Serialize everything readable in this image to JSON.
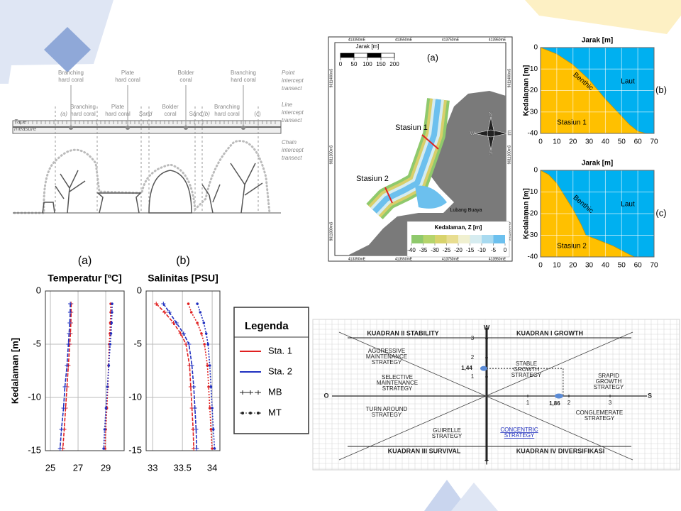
{
  "transect": {
    "point_labels": [
      [
        "Branching",
        "hard coral"
      ],
      [
        "Plate",
        "hard coral"
      ],
      [
        "Bolder",
        "coral"
      ],
      [
        "Branching",
        "hard coral"
      ]
    ],
    "point_title": [
      "Point",
      "intercept",
      "transect"
    ],
    "line_labels": [
      [
        "(a)"
      ],
      [
        "Branching",
        "hard coral"
      ],
      [
        "Plate",
        "hard coral"
      ],
      [
        "Sand"
      ],
      [
        "Bolder",
        "coral"
      ],
      [
        "Sand"
      ],
      [
        "(b)"
      ],
      [
        "Branching",
        "hard coral"
      ],
      [
        "(c)"
      ]
    ],
    "line_title": [
      "Line",
      "intercept",
      "transect"
    ],
    "tape_title": [
      "Tape",
      "measure"
    ],
    "chain_title": [
      "Chain",
      "intercept",
      "transect"
    ]
  },
  "map": {
    "panel": "(a)",
    "scale_title": "Jarak [m]",
    "scale_ticks": [
      0,
      50,
      100,
      150,
      200
    ],
    "eastings": [
      "413350mE",
      "413550mE",
      "413750mE",
      "413950mE"
    ],
    "northings": [
      "9611400mS",
      "9611200mS",
      "9611000mS"
    ],
    "stations": [
      "Stasiun 1",
      "Stasiun 2"
    ],
    "place": "Lubang Buaya",
    "colorbar_title": "Kedalaman, Z [m]",
    "colorbar_ticks": [
      -40,
      -35,
      -30,
      -25,
      -20,
      -15,
      -10,
      -5,
      0
    ],
    "compass": [
      "N",
      "E",
      "S",
      "W"
    ]
  },
  "legend": {
    "title": "Legenda",
    "items": [
      {
        "name": "Sta. 1",
        "color": "#e02020"
      },
      {
        "name": "Sta. 2",
        "color": "#2030c0"
      },
      {
        "name": "MB",
        "marker": "plus"
      },
      {
        "name": "MT",
        "marker": "dot"
      }
    ]
  },
  "chart_data": [
    {
      "type": "line",
      "panel": "(a)",
      "title": "Temperatur [ºC]",
      "ylabel": "Kedalaman [m]",
      "depths": [
        -1.2,
        -2,
        -3,
        -4,
        -5,
        -7,
        -9,
        -11,
        -13,
        -14.8
      ],
      "xlim": [
        24.64,
        30.33
      ],
      "xticks": [
        25,
        27,
        29
      ],
      "ylim": [
        -15,
        0
      ],
      "yticks": [
        0,
        -5,
        -10,
        -15
      ],
      "series": [
        {
          "color": "#e02020",
          "marker": "plus",
          "values": [
            26.5,
            26.5,
            26.48,
            26.45,
            26.4,
            26.3,
            26.2,
            26.1,
            26.0,
            25.9
          ]
        },
        {
          "color": "#2030c0",
          "marker": "plus",
          "values": [
            26.44,
            26.43,
            26.4,
            26.35,
            26.3,
            26.2,
            26.05,
            25.95,
            25.8,
            25.7
          ]
        },
        {
          "color": "#e02020",
          "marker": "dot",
          "values": [
            29.36,
            29.36,
            29.33,
            29.3,
            29.25,
            29.2,
            29.15,
            29.08,
            29.0,
            28.95
          ]
        },
        {
          "color": "#2030c0",
          "marker": "dot",
          "values": [
            29.46,
            29.45,
            29.42,
            29.38,
            29.32,
            29.22,
            29.12,
            29.02,
            28.92,
            28.85
          ]
        }
      ]
    },
    {
      "type": "line",
      "panel": "(b)",
      "title": "Salinitas [PSU]",
      "depths": [
        -1.2,
        -2,
        -3,
        -4,
        -5,
        -7,
        -9,
        -11,
        -13,
        -14.8
      ],
      "xlim": [
        32.89,
        34.13
      ],
      "xticks": [
        33,
        33.5,
        34
      ],
      "ylim": [
        -15,
        0
      ],
      "yticks": [
        0,
        -5,
        -10,
        -15
      ],
      "series": [
        {
          "color": "#e02020",
          "marker": "plus",
          "values": [
            33.06,
            33.2,
            33.35,
            33.47,
            33.56,
            33.62,
            33.64,
            33.66,
            33.68,
            33.69
          ]
        },
        {
          "color": "#2030c0",
          "marker": "plus",
          "values": [
            33.18,
            33.28,
            33.4,
            33.52,
            33.61,
            33.66,
            33.69,
            33.71,
            33.73,
            33.74
          ]
        },
        {
          "color": "#e02020",
          "marker": "dot",
          "values": [
            33.6,
            33.65,
            33.75,
            33.82,
            33.87,
            33.92,
            33.94,
            33.96,
            33.98,
            34.0
          ]
        },
        {
          "color": "#2030c0",
          "marker": "dot",
          "values": [
            33.75,
            33.8,
            33.86,
            33.9,
            33.93,
            33.96,
            33.98,
            34.0,
            34.02,
            34.04
          ]
        }
      ]
    },
    {
      "type": "area",
      "panel": "(b)",
      "title": "Jarak [m]",
      "ylabel": "Kedalaman [m]",
      "xlim": [
        0,
        70
      ],
      "xticks": [
        0,
        10,
        20,
        30,
        40,
        50,
        60,
        70
      ],
      "ylim": [
        -40,
        0
      ],
      "yticks": [
        0,
        -10,
        -20,
        -30,
        -40
      ],
      "x": [
        0,
        10,
        20,
        30,
        40,
        50,
        55,
        60,
        65
      ],
      "values": [
        0,
        -3,
        -8,
        -15,
        -24,
        -32,
        -36,
        -39,
        -40
      ],
      "labels": [
        "Benthic",
        "Laut",
        "Stasiun 1"
      ],
      "colors": {
        "sea": "#00b0f0",
        "benthic": "#ffc000"
      }
    },
    {
      "type": "area",
      "panel": "(c)",
      "title": "Jarak [m]",
      "ylabel": "Kedalaman [m]",
      "xlim": [
        0,
        70
      ],
      "xticks": [
        0,
        10,
        20,
        30,
        40,
        50,
        60,
        70
      ],
      "ylim": [
        -40,
        0
      ],
      "yticks": [
        0,
        -10,
        -20,
        -30,
        -40
      ],
      "x": [
        0,
        5,
        10,
        15,
        20,
        25,
        28,
        35,
        45,
        55,
        58
      ],
      "values": [
        0,
        -2,
        -6,
        -12,
        -18,
        -25,
        -30,
        -32,
        -35,
        -39,
        -40
      ],
      "labels": [
        "Benthic",
        "Laut",
        "Stasiun 2"
      ],
      "colors": {
        "sea": "#00b0f0",
        "benthic": "#ffc000"
      }
    },
    {
      "type": "quadrant",
      "axis_labels": {
        "top": "W",
        "bottom": "T",
        "left": "O",
        "right": "S"
      },
      "quadrants": [
        "KUADRAN II STABILITY",
        "KUADRAN I GROWTH",
        "KUADRAN III SURVIVAL",
        "KUADRAN IV DIVERSIFIKASI"
      ],
      "strategies": [
        [
          "AGGRESSIVE",
          "MAINTENANCE",
          "STRATEGY"
        ],
        [
          "SELECTIVE",
          "MAINTENANCE",
          "STRATEGY"
        ],
        [
          "STABLE",
          "GROWTH",
          "STRATEGY"
        ],
        [
          "SRAPID",
          "GROWTH",
          "STRATEGY"
        ],
        [
          "TURN AROUND",
          "STRATEGY"
        ],
        [
          "CONGLEMERATE",
          "STRATEGY"
        ],
        [
          "GUIRELLE",
          "STRATEGY"
        ],
        [
          "CONCENTRIC",
          "STRATEGY"
        ]
      ],
      "xticks": [
        1,
        2,
        3
      ],
      "yticks": [
        1,
        2,
        3
      ],
      "point": {
        "x": 1.86,
        "y": 1.44
      },
      "point_labels": {
        "x": "1,86",
        "y": "1,44"
      },
      "color": "#5b8bd6"
    }
  ]
}
